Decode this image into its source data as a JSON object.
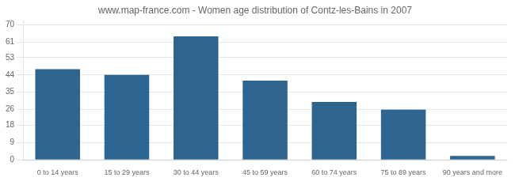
{
  "chart_data": {
    "type": "bar",
    "title": "www.map-france.com - Women age distribution of Contz-les-Bains in 2007",
    "categories": [
      "0 to 14 years",
      "15 to 29 years",
      "30 to 44 years",
      "45 to 59 years",
      "60 to 74 years",
      "75 to 89 years",
      "90 years and more"
    ],
    "values": [
      47,
      44,
      64,
      41,
      30,
      26,
      2
    ],
    "color": "#2e6590",
    "ylim": [
      0,
      72
    ],
    "yticks": [
      0,
      9,
      18,
      26,
      35,
      44,
      53,
      61,
      70
    ],
    "grid": true
  }
}
